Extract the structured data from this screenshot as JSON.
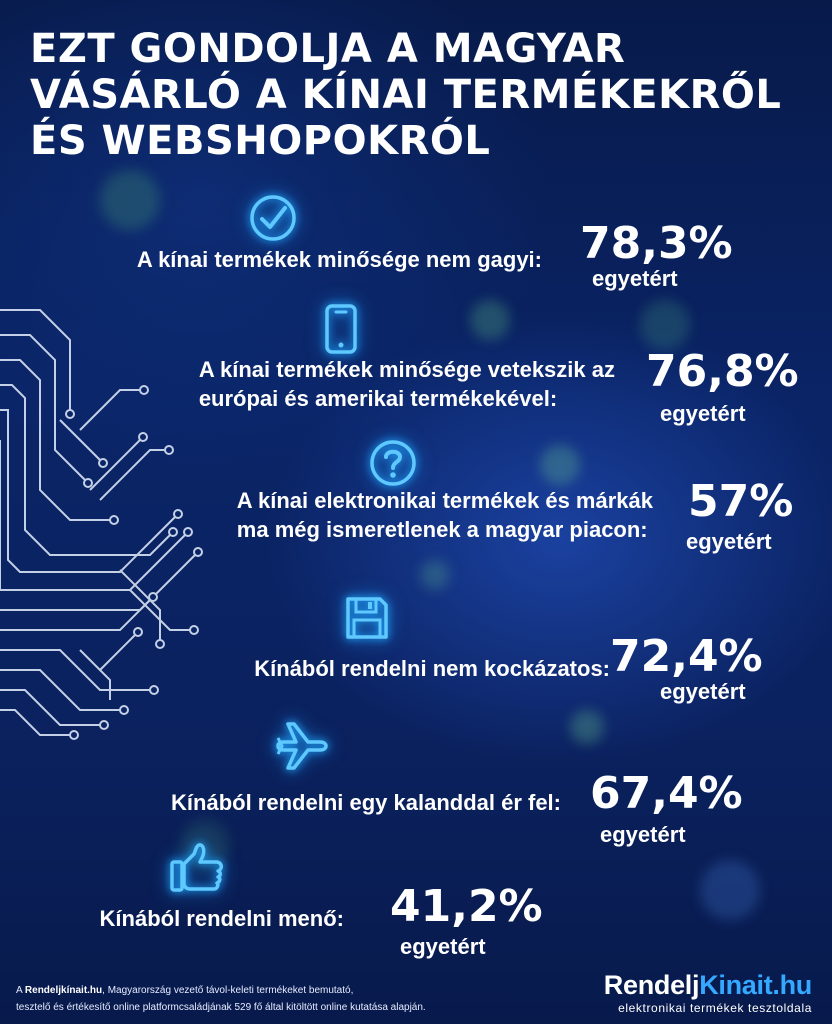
{
  "title_lines": [
    "EZT GONDOLJA A MAGYAR",
    "VÁSÁRLÓ A KÍNAI TERMÉKEKRŐL",
    "ÉS WEBSHOPOKRÓL"
  ],
  "items": [
    {
      "icon": "checkmark-circle-icon",
      "lines": [
        "A kínai termékek minősége nem gagyi:"
      ],
      "percent": "78,3%",
      "agree": "egyetért"
    },
    {
      "icon": "smartphone-icon",
      "lines": [
        "A kínai termékek minősége vetekszik az",
        "európai és amerikai termékekével:"
      ],
      "percent": "76,8%",
      "agree": "egyetért"
    },
    {
      "icon": "question-circle-icon",
      "lines": [
        "A kínai elektronikai termékek és márkák",
        "ma még ismeretlenek a magyar piacon:"
      ],
      "percent": "57%",
      "agree": "egyetért"
    },
    {
      "icon": "floppy-disk-icon",
      "lines": [
        "Kínából rendelni nem kockázatos:"
      ],
      "percent": "72,4%",
      "agree": "egyetért"
    },
    {
      "icon": "airplane-icon",
      "lines": [
        "Kínából rendelni egy kalanddal ér fel:"
      ],
      "percent": "67,4%",
      "agree": "egyetért"
    },
    {
      "icon": "thumbs-up-icon",
      "lines": [
        "Kínából rendelni menő:"
      ],
      "percent": "41,2%",
      "agree": "egyetért"
    }
  ],
  "footer": {
    "prefix": "A ",
    "brand": "Rendeljkínait.hu",
    "line1_rest": ", Magyarország vezető távol-keleti termékeket bemutató,",
    "line2": "tesztelő és értékesítő online platformcsaládjának 529 fő által kitöltött online kutatása alapján."
  },
  "logo": {
    "part1": "Rendelj",
    "part2": "Kinait.hu",
    "tagline": "elektronikai termékek tesztoldala"
  },
  "colors": {
    "background": "#0a2466",
    "icon_glow": "#1fa8ff",
    "logo_accent": "#35a8ff"
  }
}
